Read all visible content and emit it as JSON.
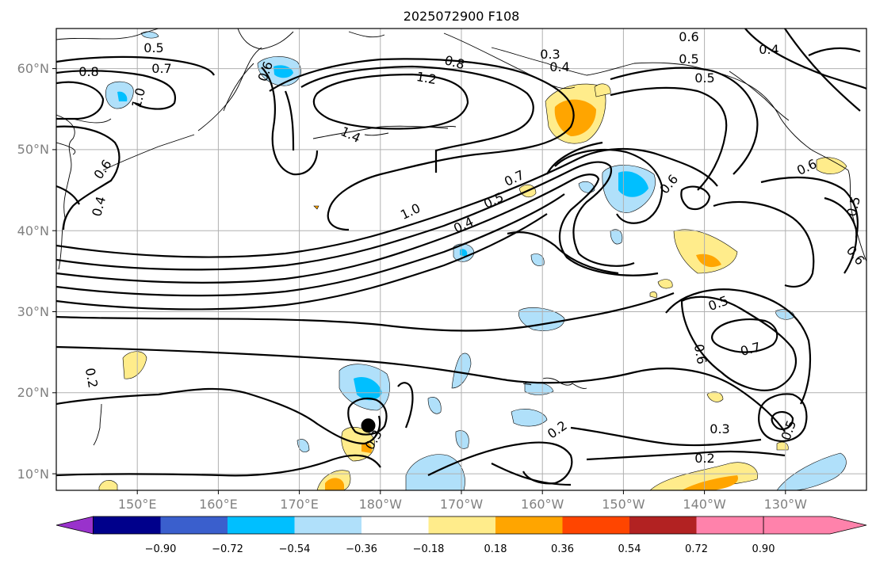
{
  "title": "2025072900 F108",
  "lat_labels": [
    "60°N",
    "50°N",
    "40°N",
    "30°N",
    "20°N",
    "10°N"
  ],
  "lon_labels": [
    "150°E",
    "160°E",
    "170°E",
    "180°W",
    "170°W",
    "160°W",
    "150°W",
    "140°W",
    "130°W"
  ],
  "contour_labels": {
    "c05a": "0.5",
    "c07a": "0.7",
    "c08a": "0.8",
    "c10a": "1.0",
    "c06a": "0.6",
    "c04a": "0.4",
    "c06b": "0.6",
    "c08b": "0.8",
    "c12": "1.2",
    "c14": "1.4",
    "c03a": "0.3",
    "c04b": "0.4",
    "c06c": "0.6",
    "c05b": "0.5",
    "c05c": "0.5",
    "c04c": "0.4",
    "c06d": "0.6",
    "c10b": "1.0",
    "c05d": "0.5",
    "c07b": "0.7",
    "c04d": "0.4",
    "c06e": "0.6",
    "c05e": "0.5",
    "c06f": "0.6",
    "c02a": "0.2",
    "c05f": "0.5",
    "c07c": "0.7",
    "c06g": "0.6",
    "c03b": "0.3",
    "c02b": "0.2",
    "c03c": "0.3",
    "c05g": "0.5",
    "c02c": "0.2"
  },
  "colorbar": {
    "ticks": [
      "−0.90",
      "−0.72",
      "−0.54",
      "−0.36",
      "−0.18",
      "0.18",
      "0.36",
      "0.54",
      "0.72",
      "0.90"
    ],
    "colors": [
      "#9932cc",
      "#00008b",
      "#3a5fcd",
      "#00bfff",
      "#b0e0fa",
      "#ffffff",
      "#ffec8b",
      "#ffa500",
      "#ff4500",
      "#b22222",
      "#ff82ab"
    ]
  },
  "marker": {
    "lat": 16,
    "lon": 178.5
  },
  "map": {
    "lat_range": [
      8,
      65
    ],
    "lon_range": [
      140,
      240
    ]
  }
}
